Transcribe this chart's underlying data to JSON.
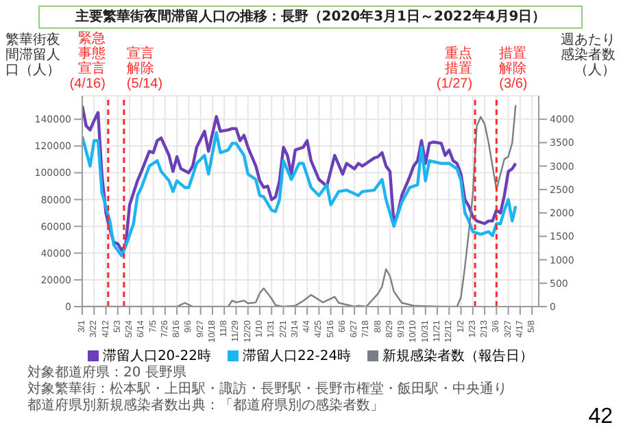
{
  "chart_data": {
    "type": "line",
    "title": "主要繁華街夜間滞留人口の推移：長野（2020年3月1日～2022年4月9日）",
    "ylabel": "繁華街夜間滞留人口（人）",
    "y2label": "週あたり感染者数（人）",
    "series": [
      {
        "name": "滞留人口20-22時",
        "color": "#6b3fb8",
        "x": [
          "2020-03-01",
          "2020-03-08",
          "2020-03-15",
          "2020-03-22",
          "2020-03-29",
          "2020-04-05",
          "2020-04-12",
          "2020-04-19",
          "2020-04-26",
          "2020-05-03",
          "2020-05-10",
          "2020-05-17",
          "2020-05-24",
          "2020-06-07",
          "2020-06-14",
          "2020-06-28",
          "2020-07-05",
          "2020-07-12",
          "2020-07-19",
          "2020-08-02",
          "2020-08-09",
          "2020-08-16",
          "2020-08-23",
          "2020-09-06",
          "2020-09-13",
          "2020-09-20",
          "2020-10-04",
          "2020-10-11",
          "2020-10-25",
          "2020-11-01",
          "2020-11-15",
          "2020-11-22",
          "2020-11-29",
          "2020-12-06",
          "2020-12-13",
          "2020-12-20",
          "2021-01-03",
          "2021-01-10",
          "2021-01-17",
          "2021-01-24",
          "2021-01-31",
          "2021-02-07",
          "2021-02-14",
          "2021-02-21",
          "2021-02-28",
          "2021-03-07",
          "2021-03-14",
          "2021-03-28",
          "2021-04-04",
          "2021-04-11",
          "2021-04-25",
          "2021-05-09",
          "2021-05-23",
          "2021-06-06",
          "2021-06-13",
          "2021-06-27",
          "2021-07-04",
          "2021-07-11",
          "2021-07-18",
          "2021-07-25",
          "2021-08-01",
          "2021-08-08",
          "2021-08-15",
          "2021-08-22",
          "2021-08-29",
          "2021-09-05",
          "2021-09-12",
          "2021-09-19",
          "2021-10-03",
          "2021-10-10",
          "2021-10-17",
          "2021-10-24",
          "2021-10-31",
          "2021-11-07",
          "2021-11-14",
          "2021-11-28",
          "2021-12-05",
          "2021-12-12",
          "2021-12-19",
          "2021-12-26",
          "2022-01-02",
          "2022-01-09",
          "2022-01-16",
          "2022-01-23",
          "2022-01-30",
          "2022-02-13",
          "2022-02-20",
          "2022-02-27",
          "2022-03-06",
          "2022-03-13",
          "2022-03-20",
          "2022-03-27",
          "2022-04-03",
          "2022-04-09"
        ],
        "values": [
          150000,
          135000,
          132000,
          139000,
          145000,
          98000,
          70000,
          58000,
          48000,
          47000,
          42000,
          46000,
          76000,
          94000,
          101000,
          116000,
          115000,
          124000,
          126000,
          113000,
          101000,
          112000,
          103000,
          100000,
          105000,
          119000,
          131000,
          116000,
          142000,
          131000,
          132000,
          133000,
          133000,
          124000,
          128000,
          119000,
          105000,
          94000,
          89000,
          90000,
          80000,
          82000,
          94000,
          119000,
          113000,
          99000,
          117000,
          119000,
          124000,
          109000,
          95000,
          90000,
          113000,
          99000,
          107000,
          103000,
          107000,
          105000,
          107000,
          109000,
          111000,
          112000,
          115000,
          105000,
          101000,
          62000,
          70000,
          83000,
          97000,
          105000,
          109000,
          124000,
          107000,
          122000,
          123000,
          122000,
          113000,
          117000,
          109000,
          107000,
          99000,
          80000,
          75000,
          67000,
          64000,
          62000,
          64000,
          64000,
          72000,
          70000,
          83000,
          101000,
          103000,
          107000
        ]
      },
      {
        "name": "滞留人口22-24時",
        "color": "#1db4ef",
        "x": [
          "2020-03-01",
          "2020-03-15",
          "2020-03-22",
          "2020-03-29",
          "2020-04-05",
          "2020-04-19",
          "2020-04-26",
          "2020-05-10",
          "2020-05-17",
          "2020-05-31",
          "2020-06-07",
          "2020-06-14",
          "2020-06-28",
          "2020-07-12",
          "2020-07-19",
          "2020-08-02",
          "2020-08-09",
          "2020-08-16",
          "2020-08-30",
          "2020-09-06",
          "2020-09-20",
          "2020-10-04",
          "2020-10-11",
          "2020-10-25",
          "2020-11-01",
          "2020-11-15",
          "2020-11-22",
          "2020-11-29",
          "2020-12-13",
          "2020-12-20",
          "2021-01-03",
          "2021-01-10",
          "2021-01-17",
          "2021-01-31",
          "2021-02-07",
          "2021-02-14",
          "2021-02-21",
          "2021-03-07",
          "2021-03-21",
          "2021-03-28",
          "2021-04-11",
          "2021-04-25",
          "2021-05-09",
          "2021-05-16",
          "2021-05-30",
          "2021-06-13",
          "2021-07-04",
          "2021-07-11",
          "2021-08-01",
          "2021-08-15",
          "2021-08-22",
          "2021-09-05",
          "2021-09-19",
          "2021-10-03",
          "2021-10-17",
          "2021-10-24",
          "2021-10-31",
          "2021-11-07",
          "2021-11-28",
          "2021-12-12",
          "2021-12-26",
          "2022-01-02",
          "2022-01-09",
          "2022-01-16",
          "2022-01-23",
          "2022-02-06",
          "2022-02-20",
          "2022-02-27",
          "2022-03-06",
          "2022-03-13",
          "2022-03-20",
          "2022-03-27",
          "2022-04-03",
          "2022-04-09"
        ],
        "values": [
          127000,
          105000,
          124000,
          124000,
          85000,
          64000,
          46000,
          38000,
          45000,
          62000,
          83000,
          89000,
          105000,
          109000,
          101000,
          94000,
          86000,
          94000,
          89000,
          89000,
          107000,
          113000,
          99000,
          130000,
          115000,
          117000,
          122000,
          122000,
          113000,
          99000,
          95000,
          83000,
          82000,
          72000,
          71000,
          80000,
          109000,
          95000,
          107000,
          107000,
          89000,
          83000,
          91000,
          76000,
          86000,
          87000,
          83000,
          86000,
          87000,
          95000,
          80000,
          60000,
          78000,
          89000,
          91000,
          119000,
          94000,
          109000,
          107000,
          107000,
          103000,
          94000,
          70000,
          64000,
          56000,
          54000,
          56000,
          53000,
          62000,
          62000,
          72000,
          80000,
          64000,
          75000
        ]
      },
      {
        "name": "新規感染者数（報告日）",
        "color": "#7a7e86",
        "axis": "y2",
        "x": [
          "2020-03-01",
          "2020-08-16",
          "2020-08-30",
          "2020-09-13",
          "2020-11-15",
          "2020-11-22",
          "2020-11-29",
          "2020-12-13",
          "2020-12-20",
          "2021-01-03",
          "2021-01-10",
          "2021-01-17",
          "2021-01-31",
          "2021-02-07",
          "2021-02-21",
          "2021-03-14",
          "2021-03-28",
          "2021-04-11",
          "2021-05-02",
          "2021-05-23",
          "2021-05-30",
          "2021-06-13",
          "2021-06-27",
          "2021-07-04",
          "2021-07-18",
          "2021-08-08",
          "2021-08-15",
          "2021-08-22",
          "2021-08-29",
          "2021-09-05",
          "2021-09-12",
          "2021-09-19",
          "2021-10-10",
          "2021-11-28",
          "2021-12-26",
          "2022-01-02",
          "2022-01-09",
          "2022-01-16",
          "2022-01-23",
          "2022-01-30",
          "2022-02-06",
          "2022-02-13",
          "2022-02-20",
          "2022-03-06",
          "2022-03-20",
          "2022-03-27",
          "2022-04-03",
          "2022-04-09"
        ],
        "values": [
          0,
          0,
          80,
          0,
          0,
          130,
          90,
          130,
          70,
          90,
          290,
          390,
          170,
          30,
          0,
          20,
          120,
          250,
          90,
          210,
          80,
          40,
          0,
          20,
          0,
          280,
          430,
          800,
          650,
          320,
          200,
          80,
          20,
          0,
          0,
          200,
          850,
          1600,
          2400,
          3850,
          4050,
          3900,
          3500,
          2500,
          3150,
          3200,
          3500,
          4300
        ]
      }
    ],
    "xlim": [
      "2020-03-01",
      "2022-05-20"
    ],
    "xticks": [
      {
        "value": "2020-03-01",
        "label": "3/1"
      },
      {
        "value": "2020-03-22",
        "label": "3/22"
      },
      {
        "value": "2020-04-12",
        "label": "4/12"
      },
      {
        "value": "2020-05-03",
        "label": "5/3"
      },
      {
        "value": "2020-05-24",
        "label": "5/24"
      },
      {
        "value": "2020-06-14",
        "label": "6/14"
      },
      {
        "value": "2020-07-05",
        "label": "7/5"
      },
      {
        "value": "2020-07-26",
        "label": "7/26"
      },
      {
        "value": "2020-08-16",
        "label": "8/16"
      },
      {
        "value": "2020-09-06",
        "label": "9/6"
      },
      {
        "value": "2020-09-27",
        "label": "9/27"
      },
      {
        "value": "2020-10-18",
        "label": "10/18"
      },
      {
        "value": "2020-11-08",
        "label": "11/8"
      },
      {
        "value": "2020-11-29",
        "label": "11/29"
      },
      {
        "value": "2020-12-20",
        "label": "12/20"
      },
      {
        "value": "2021-01-10",
        "label": "1/10"
      },
      {
        "value": "2021-01-31",
        "label": "1/31"
      },
      {
        "value": "2021-02-21",
        "label": "2/21"
      },
      {
        "value": "2021-03-14",
        "label": "3/14"
      },
      {
        "value": "2021-04-04",
        "label": "4/4"
      },
      {
        "value": "2021-04-25",
        "label": "4/25"
      },
      {
        "value": "2021-05-16",
        "label": "5/16"
      },
      {
        "value": "2021-06-06",
        "label": "6/6"
      },
      {
        "value": "2021-06-27",
        "label": "6/27"
      },
      {
        "value": "2021-07-18",
        "label": "7/18"
      },
      {
        "value": "2021-08-08",
        "label": "8/8"
      },
      {
        "value": "2021-08-29",
        "label": "8/29"
      },
      {
        "value": "2021-09-19",
        "label": "9/19"
      },
      {
        "value": "2021-10-10",
        "label": "10/10"
      },
      {
        "value": "2021-10-31",
        "label": "10/31"
      },
      {
        "value": "2021-11-21",
        "label": "11/21"
      },
      {
        "value": "2021-12-12",
        "label": "12/12"
      },
      {
        "value": "2022-01-02",
        "label": "1/2"
      },
      {
        "value": "2022-01-23",
        "label": "1/23"
      },
      {
        "value": "2022-02-13",
        "label": "2/13"
      },
      {
        "value": "2022-03-06",
        "label": "3/6"
      },
      {
        "value": "2022-03-27",
        "label": "3/27"
      },
      {
        "value": "2022-04-17",
        "label": "4/17"
      },
      {
        "value": "2022-05-08",
        "label": "5/8"
      }
    ],
    "ylim": [
      0,
      157500
    ],
    "yticks": [
      0,
      20000,
      40000,
      60000,
      80000,
      100000,
      120000,
      140000
    ],
    "y2lim": [
      0,
      4500
    ],
    "y2ticks": [
      0,
      500,
      1000,
      1500,
      2000,
      2500,
      3000,
      3500,
      4000
    ],
    "ref_lines": [
      {
        "axis": "x",
        "value": "2020-04-16",
        "label": "緊急事態宣言(4/16)",
        "color": "#ff2a2a",
        "line_style": "dashed"
      },
      {
        "axis": "x",
        "value": "2020-05-14",
        "label": "宣言解除(5/14)",
        "color": "#ff2a2a",
        "line_style": "dashed"
      },
      {
        "axis": "x",
        "value": "2022-01-27",
        "label": "重点措置(1/27)",
        "color": "#ff2a2a",
        "line_style": "dashed"
      },
      {
        "axis": "x",
        "value": "2022-03-06",
        "label": "措置解除(3/6)",
        "color": "#ff2a2a",
        "line_style": "dashed"
      }
    ],
    "grid": true,
    "legend": "bottom",
    "marker": "none",
    "line_style": "solid",
    "annotations": [
      "対象都道府県：20 長野県",
      "対象繁華街：松本駅・上田駅・諏訪・長野駅・長野市権堂・飯田駅・中央通り",
      "都道府県別新規感染者数出典：「都道府県別の感染者数」",
      "42"
    ]
  }
}
